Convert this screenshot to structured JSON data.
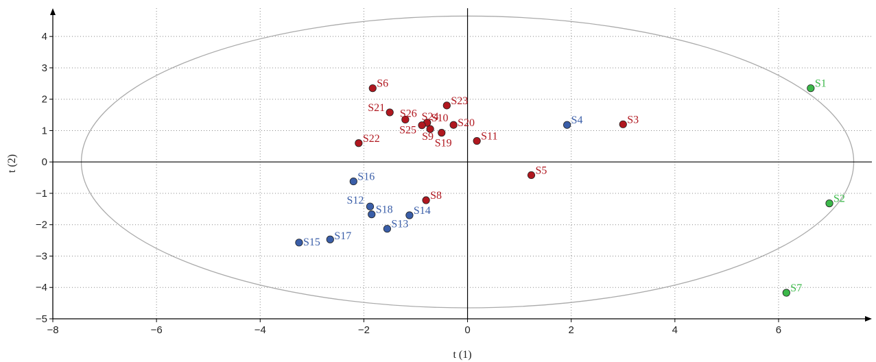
{
  "chart_data": {
    "type": "scatter",
    "xlabel": "t (1)",
    "ylabel": "t (2)",
    "xlim": [
      -8,
      7.8
    ],
    "ylim": [
      -5,
      4.9
    ],
    "x_ticks": [
      -8,
      -6,
      -4,
      -2,
      0,
      2,
      4,
      6
    ],
    "y_ticks": [
      -5,
      -4,
      -3,
      -2,
      -1,
      0,
      1,
      2,
      3,
      4
    ],
    "x_tick_labels": [
      "−8",
      "−6",
      "−4",
      "−2",
      "0",
      "2",
      "4",
      "6"
    ],
    "y_tick_labels": [
      "−5",
      "−4",
      "−3",
      "−2",
      "−1",
      "0",
      "1",
      "2",
      "3",
      "4"
    ],
    "grid": "dotted",
    "ellipse": {
      "center": [
        0,
        0
      ],
      "rx": 7.45,
      "ry": 4.65,
      "color": "#aaaaaa"
    },
    "series": [
      {
        "color": "#b0171f",
        "points": [
          {
            "label": "S3",
            "x": 3.0,
            "y": 1.2
          },
          {
            "label": "S5",
            "x": 1.23,
            "y": -0.42
          },
          {
            "label": "S6",
            "x": -1.83,
            "y": 2.35
          },
          {
            "label": "S8",
            "x": -0.8,
            "y": -1.22
          },
          {
            "label": "S9",
            "x": -0.72,
            "y": 1.05
          },
          {
            "label": "S10",
            "x": -0.78,
            "y": 1.25
          },
          {
            "label": "S11",
            "x": 0.18,
            "y": 0.67
          },
          {
            "label": "S19",
            "x": -0.5,
            "y": 0.93
          },
          {
            "label": "S20",
            "x": -0.27,
            "y": 1.18
          },
          {
            "label": "S21",
            "x": -1.5,
            "y": 1.58
          },
          {
            "label": "S22",
            "x": -2.1,
            "y": 0.6
          },
          {
            "label": "S23",
            "x": -0.4,
            "y": 1.8
          },
          {
            "label": "S24",
            "x": -0.78,
            "y": 1.25
          },
          {
            "label": "S25",
            "x": -0.88,
            "y": 1.17
          },
          {
            "label": "S26",
            "x": -1.2,
            "y": 1.35
          }
        ]
      },
      {
        "color": "#3a5ea8",
        "points": [
          {
            "label": "S4",
            "x": 1.92,
            "y": 1.18
          },
          {
            "label": "S12",
            "x": -1.88,
            "y": -1.42
          },
          {
            "label": "S13",
            "x": -1.55,
            "y": -2.13
          },
          {
            "label": "S14",
            "x": -1.12,
            "y": -1.7
          },
          {
            "label": "S15",
            "x": -3.25,
            "y": -2.57
          },
          {
            "label": "S16",
            "x": -2.2,
            "y": -0.62
          },
          {
            "label": "S17",
            "x": -2.65,
            "y": -2.47
          },
          {
            "label": "S18",
            "x": -1.85,
            "y": -1.67
          }
        ]
      },
      {
        "color": "#3cb84a",
        "points": [
          {
            "label": "S1",
            "x": 6.62,
            "y": 2.35
          },
          {
            "label": "S2",
            "x": 6.98,
            "y": -1.32
          },
          {
            "label": "S7",
            "x": 6.15,
            "y": -4.17
          }
        ]
      }
    ]
  }
}
